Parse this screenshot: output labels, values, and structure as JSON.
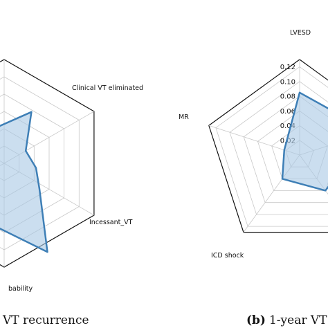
{
  "chart_data": [
    {
      "type": "radar",
      "axes": [
        "Clinical VT eliminated",
        "Incessant_VT",
        "bability"
      ],
      "caption": "VT recurrence",
      "grid": true,
      "colors": {
        "fill": "#a9c8e4",
        "line": "#3e7fb6"
      }
    },
    {
      "type": "radar",
      "axes": [
        "LVESD",
        "MR",
        "ICD shock"
      ],
      "r_ticks": [
        "0.02",
        "0.04",
        "0.06",
        "0.08",
        "0.10",
        "0.12"
      ],
      "rlim": [
        0,
        0.13
      ],
      "series": [
        {
          "values": {
            "LVESD": 0.085,
            "MR": 0.022,
            "ICD shock": 0.04
          }
        }
      ],
      "caption_label": "(b)",
      "caption": "1-year VT",
      "grid": true,
      "colors": {
        "fill": "#a9c8e4",
        "line": "#3e7fb6"
      }
    }
  ]
}
